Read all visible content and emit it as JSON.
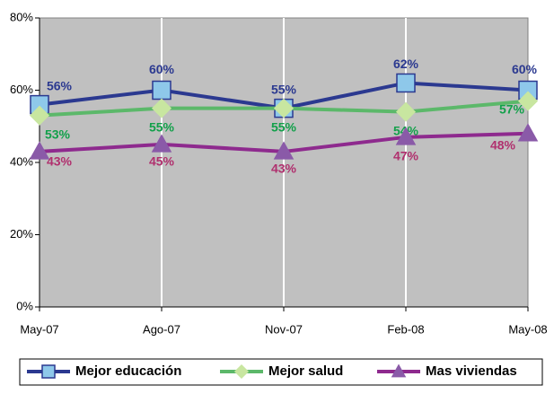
{
  "chart_data": {
    "type": "line",
    "categories": [
      "May-07",
      "Ago-07",
      "Nov-07",
      "Feb-08",
      "May-08"
    ],
    "series": [
      {
        "name": "Mejor educación",
        "color": "#2b3990",
        "marker": "square",
        "marker_color": "#8ec8ea",
        "label_color": "#2b3990",
        "values": [
          56,
          60,
          55,
          62,
          60
        ],
        "value_labels": [
          "56%",
          "60%",
          "55%",
          "62%",
          "60%"
        ]
      },
      {
        "name": "Mejor salud",
        "color": "#5cb86a",
        "marker": "diamond",
        "marker_color": "#c8e6a0",
        "label_color": "#12a04a",
        "values": [
          53,
          55,
          55,
          54,
          57
        ],
        "value_labels": [
          "53%",
          "55%",
          "55%",
          "54%",
          "57%"
        ]
      },
      {
        "name": "Mas viviendas",
        "color": "#8e2a8e",
        "marker": "triangle",
        "marker_color": "#8a5aa8",
        "label_color": "#b0306e",
        "values": [
          43,
          45,
          43,
          47,
          48
        ],
        "value_labels": [
          "43%",
          "45%",
          "43%",
          "47%",
          "48%"
        ]
      }
    ],
    "ylim": [
      0,
      80
    ],
    "yticks": [
      {
        "value": 0,
        "label": "0%"
      },
      {
        "value": 20,
        "label": "20%"
      },
      {
        "value": 40,
        "label": "40%"
      },
      {
        "value": 60,
        "label": "60%"
      },
      {
        "value": 80,
        "label": "80%"
      }
    ],
    "grid": true,
    "plot_color": "#c0c0c0",
    "legend": "bottom"
  }
}
